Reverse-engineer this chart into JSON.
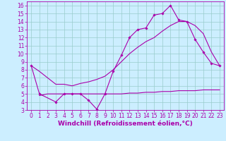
{
  "bg_color": "#cceeff",
  "line_color": "#aa00aa",
  "grid_color": "#99cccc",
  "xlabel": "Windchill (Refroidissement éolien,°C)",
  "xlabel_fontsize": 6.5,
  "tick_fontsize": 5.5,
  "xlim": [
    -0.5,
    23.5
  ],
  "ylim": [
    3,
    16.5
  ],
  "yticks": [
    3,
    4,
    5,
    6,
    7,
    8,
    9,
    10,
    11,
    12,
    13,
    14,
    15,
    16
  ],
  "xticks": [
    0,
    1,
    2,
    3,
    4,
    5,
    6,
    7,
    8,
    9,
    10,
    11,
    12,
    13,
    14,
    15,
    16,
    17,
    18,
    19,
    20,
    21,
    22,
    23
  ],
  "line1_x": [
    0,
    1,
    3,
    4,
    5,
    6,
    7,
    8,
    9,
    10,
    11,
    12,
    13,
    14,
    15,
    16,
    17,
    18,
    19,
    20,
    21,
    22,
    23
  ],
  "line1_y": [
    8.5,
    5.0,
    4.0,
    5.0,
    5.0,
    5.0,
    4.2,
    3.1,
    5.0,
    7.8,
    9.8,
    12.0,
    13.0,
    13.2,
    14.8,
    15.0,
    16.0,
    14.2,
    14.0,
    11.8,
    10.2,
    8.8,
    8.5
  ],
  "line2_x": [
    0,
    1,
    3,
    4,
    5,
    6,
    7,
    8,
    9,
    10,
    11,
    12,
    13,
    14,
    15,
    16,
    17,
    18,
    19,
    20,
    21,
    22,
    23
  ],
  "line2_y": [
    8.5,
    7.8,
    6.2,
    6.2,
    6.0,
    6.3,
    6.5,
    6.8,
    7.2,
    8.0,
    9.0,
    10.0,
    10.8,
    11.5,
    12.0,
    12.8,
    13.5,
    14.0,
    14.0,
    13.5,
    12.5,
    10.2,
    8.5
  ],
  "line3_x": [
    1,
    2,
    3,
    4,
    5,
    6,
    7,
    8,
    9,
    10,
    11,
    12,
    13,
    14,
    15,
    16,
    17,
    18,
    19,
    20,
    21,
    22,
    23
  ],
  "line3_y": [
    4.8,
    5.0,
    5.0,
    5.0,
    5.0,
    5.0,
    5.0,
    5.0,
    5.0,
    5.0,
    5.0,
    5.1,
    5.1,
    5.2,
    5.2,
    5.3,
    5.3,
    5.4,
    5.4,
    5.4,
    5.5,
    5.5,
    5.5
  ]
}
